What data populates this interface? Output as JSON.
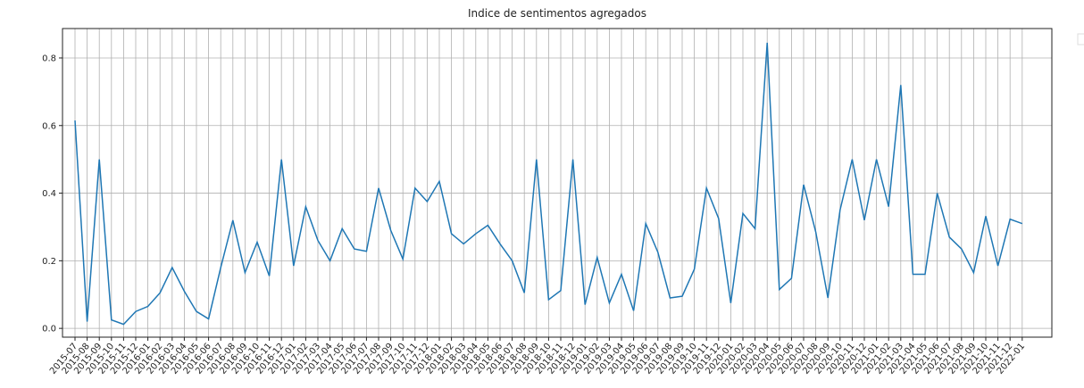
{
  "chart_data": {
    "type": "line",
    "title": "Indice de sentimentos agregados",
    "categories": [
      "2015-07",
      "2015-08",
      "2015-09",
      "2015-10",
      "2015-11",
      "2015-12",
      "2016-01",
      "2016-02",
      "2016-03",
      "2016-04",
      "2016-05",
      "2016-06",
      "2016-07",
      "2016-08",
      "2016-09",
      "2016-10",
      "2016-11",
      "2016-12",
      "2017-01",
      "2017-02",
      "2017-03",
      "2017-04",
      "2017-05",
      "2017-06",
      "2017-07",
      "2017-08",
      "2017-09",
      "2017-10",
      "2017-11",
      "2017-12",
      "2018-01",
      "2018-02",
      "2018-03",
      "2018-04",
      "2018-05",
      "2018-06",
      "2018-07",
      "2018-08",
      "2018-09",
      "2018-10",
      "2018-11",
      "2018-12",
      "2019-01",
      "2019-02",
      "2019-03",
      "2019-04",
      "2019-05",
      "2019-06",
      "2019-07",
      "2019-08",
      "2019-09",
      "2019-10",
      "2019-11",
      "2019-12",
      "2020-01",
      "2020-02",
      "2020-03",
      "2020-04",
      "2020-05",
      "2020-06",
      "2020-07",
      "2020-08",
      "2020-09",
      "2020-10",
      "2020-11",
      "2020-12",
      "2021-01",
      "2021-02",
      "2021-03",
      "2021-04",
      "2021-05",
      "2021-06",
      "2021-07",
      "2021-08",
      "2021-09",
      "2021-10",
      "2021-11",
      "2021-12",
      "2022-01"
    ],
    "series": [
      {
        "color": "#1f77b4",
        "values": [
          0.615,
          0.02,
          0.5,
          0.025,
          0.012,
          0.05,
          0.065,
          0.105,
          0.18,
          0.11,
          0.05,
          0.028,
          0.18,
          0.32,
          0.165,
          0.255,
          0.155,
          0.5,
          0.185,
          0.36,
          0.26,
          0.2,
          0.295,
          0.235,
          0.228,
          0.415,
          0.29,
          0.205,
          0.415,
          0.375,
          0.435,
          0.28,
          0.25,
          0.28,
          0.305,
          0.25,
          0.2,
          0.105,
          0.5,
          0.085,
          0.112,
          0.5,
          0.07,
          0.21,
          0.075,
          0.16,
          0.052,
          0.31,
          0.225,
          0.09,
          0.095,
          0.175,
          0.415,
          0.325,
          0.075,
          0.34,
          0.295,
          0.845,
          0.115,
          0.148,
          0.425,
          0.285,
          0.09,
          0.35,
          0.5,
          0.32,
          0.5,
          0.36,
          0.72,
          0.16,
          0.16,
          0.4,
          0.27,
          0.235,
          0.165,
          0.332,
          0.185,
          0.323,
          0.31
        ]
      }
    ],
    "ylim": [
      -0.026,
      0.887
    ],
    "yticks": [
      {
        "value": 0,
        "label": "0.0"
      },
      0.2,
      0.4,
      0.6,
      0.8
    ],
    "grid": true
  }
}
